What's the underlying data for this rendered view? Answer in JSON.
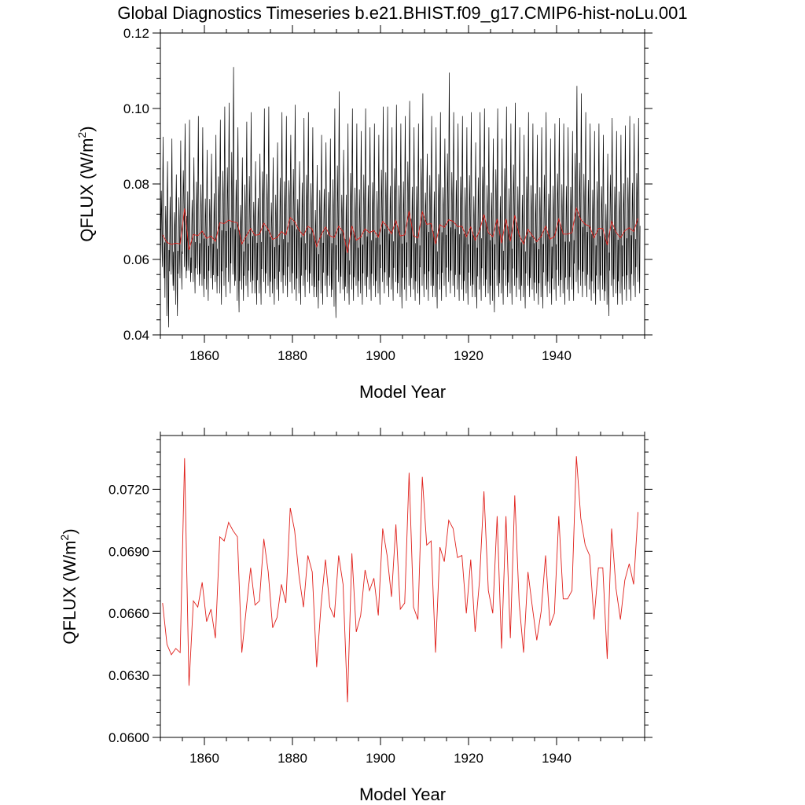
{
  "title": "Global Diagnostics Timeseries b.e21.BHIST.f09_g17.CMIP6-hist-noLu.001",
  "chart_data": [
    {
      "type": "line",
      "xlabel": "Model Year",
      "ylabel": "QFLUX (W/m",
      "ylabel_sup": "2",
      "ylabel_close": ")",
      "xlim": [
        1850,
        1960
      ],
      "ylim": [
        0.04,
        0.12
      ],
      "xticks": [
        1860,
        1880,
        1900,
        1920,
        1940
      ],
      "yticks": [
        0.04,
        0.06,
        0.08,
        0.1,
        0.12
      ],
      "ytick_labels": [
        "0.04",
        "0.06",
        "0.08",
        "0.10",
        "0.12"
      ],
      "grid": false,
      "series": [
        {
          "key": "monthly",
          "color": "#000000",
          "style": "monthly seasonal cycle, approx. 0.045–0.111",
          "base_annual": [
            0.0665,
            0.0645,
            0.064,
            0.0643,
            0.0641,
            0.0735,
            0.0625,
            0.0666,
            0.0663,
            0.0675,
            0.0656,
            0.0662,
            0.0648,
            0.0697,
            0.0695,
            0.0704,
            0.07,
            0.0697,
            0.0641,
            0.0662,
            0.0682,
            0.0664,
            0.0666,
            0.0696,
            0.068,
            0.0653,
            0.0658,
            0.0674,
            0.0665,
            0.0711,
            0.07,
            0.0678,
            0.0663,
            0.0688,
            0.068,
            0.0634,
            0.0664,
            0.0686,
            0.0663,
            0.0658,
            0.0688,
            0.0674,
            0.0617,
            0.0689,
            0.0651,
            0.0659,
            0.0681,
            0.0671,
            0.0677,
            0.0659,
            0.0701,
            0.0688,
            0.0668,
            0.0703,
            0.0662,
            0.0665,
            0.0728,
            0.0663,
            0.0657,
            0.0726,
            0.0693,
            0.0695,
            0.0641,
            0.0692,
            0.0685,
            0.0705,
            0.0701,
            0.0687,
            0.0688,
            0.066,
            0.0686,
            0.0651,
            0.0676,
            0.0719,
            0.0671,
            0.066,
            0.0707,
            0.0643,
            0.0707,
            0.0648,
            0.0717,
            0.0665,
            0.0641,
            0.068,
            0.0663,
            0.0647,
            0.0661,
            0.0688,
            0.0654,
            0.066,
            0.0707,
            0.0667,
            0.0667,
            0.0671,
            0.0736,
            0.0706,
            0.0693,
            0.0688,
            0.0657,
            0.0682,
            0.0682,
            0.0638,
            0.0701,
            0.0672,
            0.0657,
            0.0676,
            0.0684,
            0.0674,
            0.0709
          ],
          "peaks": [
            0.0925,
            0.086,
            0.092,
            0.0825,
            0.0915,
            0.096,
            0.097,
            0.087,
            0.098,
            0.095,
            0.089,
            0.088,
            0.093,
            0.097,
            0.1005,
            0.1015,
            0.111,
            0.095,
            0.087,
            0.0965,
            0.099,
            0.086,
            0.088,
            0.1,
            0.1005,
            0.087,
            0.091,
            0.099,
            0.098,
            0.093,
            0.101,
            0.086,
            0.0975,
            0.099,
            0.095,
            0.085,
            0.093,
            0.091,
            0.092,
            0.1,
            0.1045,
            0.089,
            0.096,
            0.1,
            0.096,
            0.094,
            0.1,
            0.095,
            0.096,
            0.093,
            0.1005,
            0.1005,
            0.095,
            0.101,
            0.096,
            0.098,
            0.102,
            0.095,
            0.096,
            0.104,
            0.088,
            0.098,
            0.095,
            0.099,
            0.092,
            0.1095,
            0.099,
            0.096,
            0.098,
            0.095,
            0.099,
            0.091,
            0.099,
            0.1,
            0.095,
            0.092,
            0.1,
            0.092,
            0.1005,
            0.096,
            0.1015,
            0.095,
            0.093,
            0.099,
            0.096,
            0.093,
            0.095,
            0.099,
            0.092,
            0.096,
            0.0975,
            0.096,
            0.095,
            0.094,
            0.106,
            0.104,
            0.099,
            0.096,
            0.094,
            0.096,
            0.093,
            0.088,
            0.0975,
            0.094,
            0.093,
            0.0955,
            0.098,
            0.096,
            0.0975
          ],
          "troughs": [
            0.055,
            0.042,
            0.053,
            0.045,
            0.052,
            0.055,
            0.054,
            0.051,
            0.053,
            0.05,
            0.049,
            0.052,
            0.051,
            0.048,
            0.05,
            0.051,
            0.053,
            0.046,
            0.049,
            0.05,
            0.051,
            0.048,
            0.048,
            0.051,
            0.05,
            0.048,
            0.049,
            0.051,
            0.05,
            0.051,
            0.049,
            0.048,
            0.05,
            0.051,
            0.05,
            0.047,
            0.048,
            0.05,
            0.05,
            0.0445,
            0.051,
            0.049,
            0.048,
            0.049,
            0.05,
            0.048,
            0.05,
            0.049,
            0.05,
            0.048,
            0.051,
            0.05,
            0.049,
            0.051,
            0.047,
            0.049,
            0.05,
            0.049,
            0.048,
            0.05,
            0.049,
            0.05,
            0.047,
            0.049,
            0.05,
            0.051,
            0.05,
            0.049,
            0.049,
            0.048,
            0.05,
            0.047,
            0.049,
            0.05,
            0.048,
            0.046,
            0.05,
            0.048,
            0.05,
            0.048,
            0.05,
            0.049,
            0.047,
            0.05,
            0.049,
            0.048,
            0.047,
            0.05,
            0.048,
            0.049,
            0.05,
            0.048,
            0.049,
            0.049,
            0.051,
            0.05,
            0.05,
            0.049,
            0.048,
            0.049,
            0.049,
            0.045,
            0.05,
            0.048,
            0.048,
            0.049,
            0.049,
            0.05,
            0.051
          ]
        },
        {
          "key": "annual",
          "color": "#e0201b",
          "x_start": 1850,
          "x_step": 1,
          "values_ref": "base_annual"
        }
      ]
    },
    {
      "type": "line",
      "xlabel": "Model Year",
      "ylabel": "QFLUX (W/m",
      "ylabel_sup": "2",
      "ylabel_close": ")",
      "xlim": [
        1850,
        1960
      ],
      "ylim": [
        0.06,
        0.0746
      ],
      "xticks": [
        1860,
        1880,
        1900,
        1920,
        1940
      ],
      "yticks": [
        0.06,
        0.063,
        0.066,
        0.069,
        0.072
      ],
      "ytick_labels": [
        "0.0600",
        "0.0630",
        "0.0660",
        "0.0690",
        "0.0720"
      ],
      "grid": false,
      "series": [
        {
          "key": "annual",
          "color": "#e0201b",
          "x_start": 1850,
          "x_step": 1,
          "values": [
            0.0665,
            0.0645,
            0.064,
            0.0643,
            0.0641,
            0.0735,
            0.0625,
            0.0666,
            0.0663,
            0.0675,
            0.0656,
            0.0662,
            0.0648,
            0.0697,
            0.0695,
            0.0704,
            0.07,
            0.0697,
            0.0641,
            0.0662,
            0.0682,
            0.0664,
            0.0666,
            0.0696,
            0.068,
            0.0653,
            0.0658,
            0.0674,
            0.0665,
            0.0711,
            0.07,
            0.0678,
            0.0663,
            0.0688,
            0.068,
            0.0634,
            0.0664,
            0.0686,
            0.0663,
            0.0658,
            0.0688,
            0.0674,
            0.0617,
            0.0689,
            0.0651,
            0.0659,
            0.0681,
            0.0671,
            0.0677,
            0.0659,
            0.0701,
            0.0688,
            0.0668,
            0.0703,
            0.0662,
            0.0665,
            0.0728,
            0.0663,
            0.0657,
            0.0726,
            0.0693,
            0.0695,
            0.0641,
            0.0692,
            0.0685,
            0.0705,
            0.0701,
            0.0687,
            0.0688,
            0.066,
            0.0686,
            0.0651,
            0.0676,
            0.0719,
            0.0671,
            0.066,
            0.0707,
            0.0643,
            0.0707,
            0.0648,
            0.0717,
            0.0665,
            0.0641,
            0.068,
            0.0663,
            0.0647,
            0.0661,
            0.0688,
            0.0654,
            0.066,
            0.0707,
            0.0667,
            0.0667,
            0.0671,
            0.0736,
            0.0706,
            0.0693,
            0.0688,
            0.0657,
            0.0682,
            0.0682,
            0.0638,
            0.0701,
            0.0672,
            0.0657,
            0.0676,
            0.0684,
            0.0674,
            0.0709
          ]
        }
      ]
    }
  ]
}
